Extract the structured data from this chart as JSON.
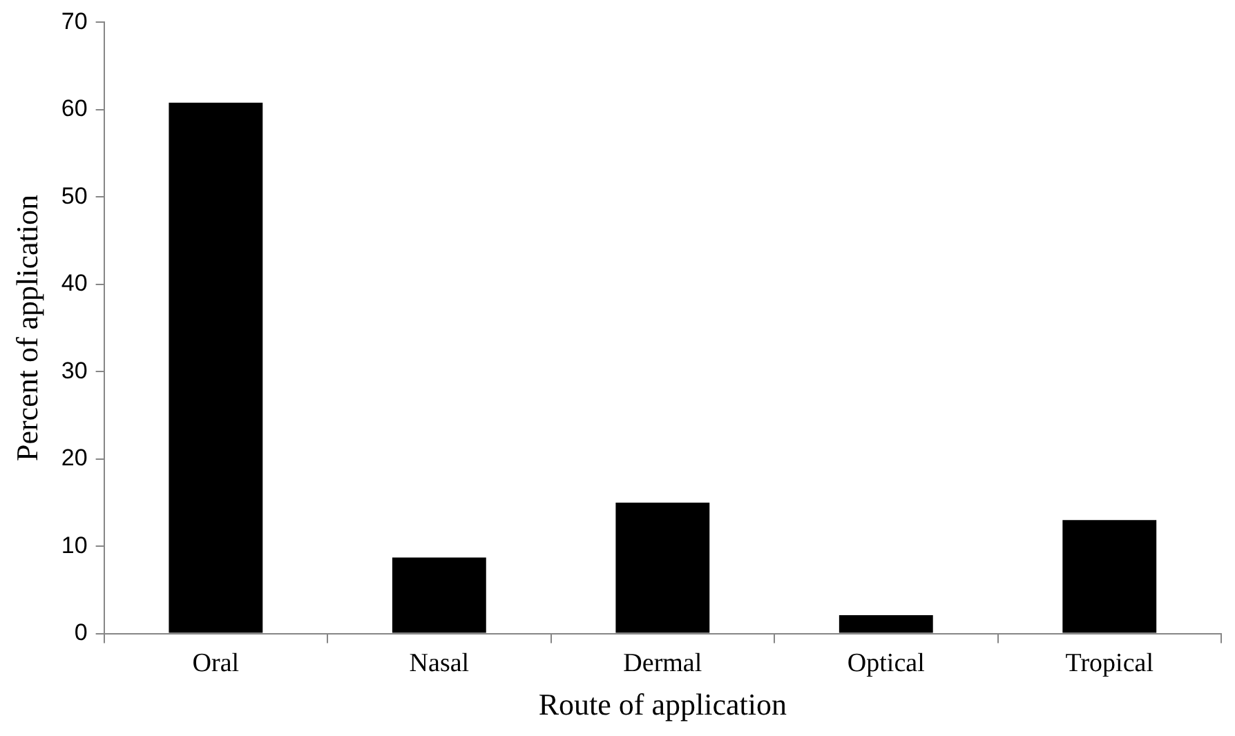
{
  "chart_data": {
    "type": "bar",
    "xlabel": "Route of application",
    "ylabel": "Percent of application",
    "categories": [
      "Oral",
      "Nasal",
      "Dermal",
      "Optical",
      "Tropical"
    ],
    "values": [
      60.8,
      8.7,
      15,
      2.1,
      13
    ],
    "color": "#000000",
    "ylim": [
      0,
      70
    ],
    "yticks": [
      0,
      10,
      20,
      30,
      40,
      50,
      60,
      70
    ],
    "grid": false,
    "legend": false
  }
}
